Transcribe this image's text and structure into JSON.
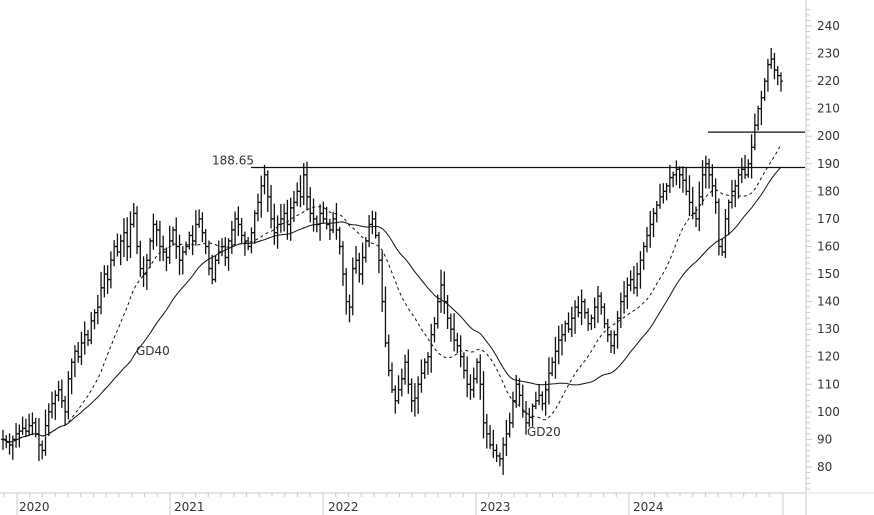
{
  "chart_data": {
    "type": "ohlc",
    "title": "",
    "xlabel": "",
    "ylabel": "",
    "ylim": [
      70,
      245
    ],
    "y_ticks": [
      80,
      90,
      100,
      110,
      120,
      130,
      140,
      150,
      160,
      170,
      180,
      190,
      200,
      210,
      220,
      230,
      240
    ],
    "x_ticks": [
      "2020",
      "2021",
      "2022",
      "2023",
      "2024"
    ],
    "grid": false,
    "annotations": [
      {
        "type": "hline",
        "value": 188.65,
        "label": "188.65",
        "from": "2021-06"
      },
      {
        "type": "hline",
        "value": 201.5,
        "label": "",
        "from": "2024-06"
      },
      {
        "type": "text",
        "label": "GD40",
        "series": "moving_average_40"
      },
      {
        "type": "text",
        "label": "GD20",
        "series": "moving_average_20"
      }
    ],
    "closes_weekly_approx": [
      90,
      89,
      88,
      90,
      92,
      93,
      94,
      93,
      95,
      96,
      92,
      88,
      86,
      95,
      100,
      103,
      106,
      108,
      104,
      100,
      112,
      118,
      122,
      120,
      125,
      128,
      126,
      133,
      136,
      138,
      145,
      150,
      148,
      155,
      160,
      158,
      162,
      165,
      160,
      168,
      172,
      160,
      152,
      150,
      155,
      162,
      168,
      166,
      160,
      158,
      156,
      162,
      166,
      160,
      155,
      158,
      160,
      164,
      162,
      168,
      170,
      165,
      160,
      152,
      148,
      155,
      158,
      160,
      156,
      162,
      166,
      170,
      168,
      164,
      162,
      160,
      165,
      172,
      176,
      182,
      186,
      178,
      170,
      165,
      168,
      170,
      172,
      168,
      174,
      176,
      180,
      178,
      186,
      178,
      172,
      170,
      168,
      172,
      170,
      168,
      166,
      170,
      166,
      160,
      150,
      140,
      138,
      152,
      155,
      150,
      156,
      162,
      168,
      170,
      164,
      155,
      140,
      125,
      115,
      108,
      104,
      108,
      112,
      118,
      110,
      104,
      105,
      110,
      114,
      118,
      120,
      128,
      132,
      140,
      146,
      140,
      134,
      130,
      126,
      124,
      120,
      115,
      110,
      108,
      112,
      118,
      110,
      96,
      92,
      88,
      86,
      84,
      83,
      88,
      92,
      96,
      104,
      110,
      106,
      100,
      96,
      98,
      102,
      104,
      106,
      103,
      108,
      114,
      118,
      122,
      126,
      128,
      132,
      130,
      134,
      138,
      136,
      140,
      136,
      132,
      134,
      138,
      142,
      138,
      132,
      128,
      124,
      128,
      134,
      140,
      142,
      146,
      148,
      145,
      150,
      155,
      160,
      164,
      168,
      172,
      175,
      178,
      180,
      182,
      185,
      186,
      188,
      186,
      184,
      180,
      176,
      172,
      170,
      178,
      186,
      190,
      186,
      182,
      176,
      160,
      158,
      170,
      176,
      180,
      182,
      186,
      188,
      186,
      190,
      196,
      204,
      210,
      214,
      220,
      226,
      228,
      224,
      222,
      220
    ],
    "series": [
      {
        "name": "GD20",
        "style": "dashed"
      },
      {
        "name": "GD40",
        "style": "solid"
      }
    ]
  }
}
